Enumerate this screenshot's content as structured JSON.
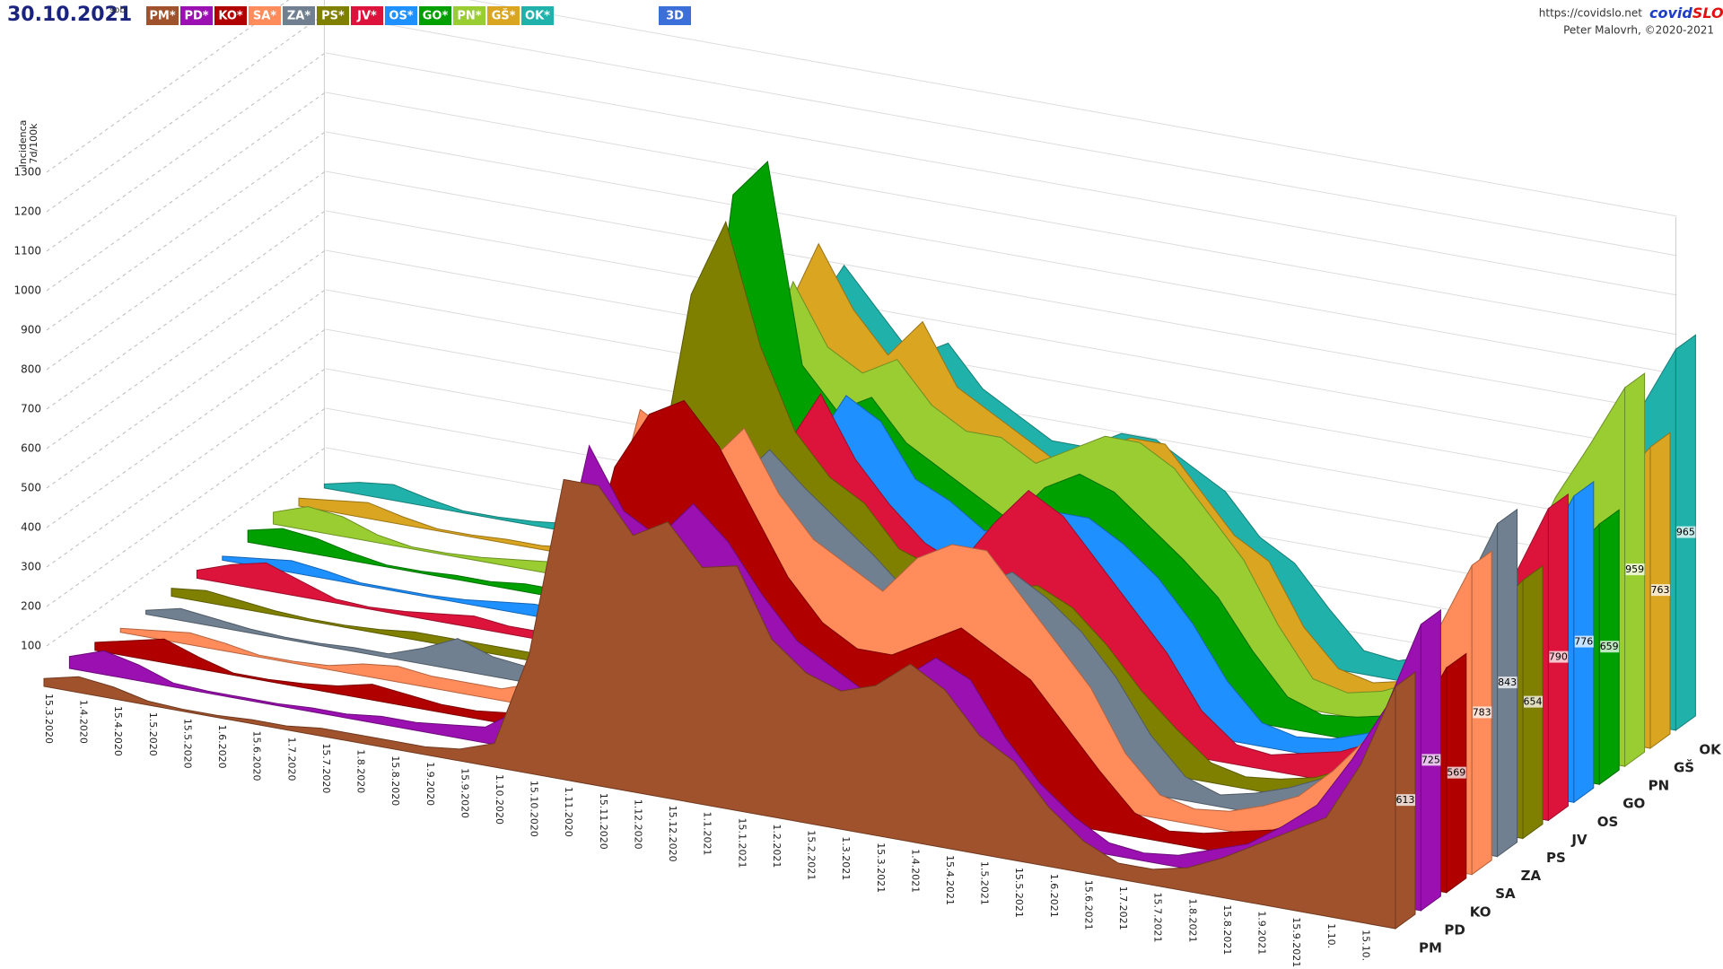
{
  "header": {
    "date": "30.10.2021",
    "weekday": "sob",
    "url": "https://covidslo.net",
    "brand_a": "covid",
    "brand_b": "SLO",
    "author": "Peter Malovrh, ©2020-2021",
    "mode_button": "3D"
  },
  "chart_data": {
    "type": "area",
    "y_label": [
      "Incidenca",
      "7d/100k"
    ],
    "legend_labels": [
      "PM*",
      "PD*",
      "KO*",
      "SA*",
      "ZA*",
      "PS*",
      "JV*",
      "OS*",
      "GO*",
      "PN*",
      "GŠ*",
      "OK*"
    ],
    "categories": [
      "15.3.2020",
      "1.4.2020",
      "15.4.2020",
      "1.5.2020",
      "15.5.2020",
      "1.6.2020",
      "15.6.2020",
      "1.7.2020",
      "15.7.2020",
      "1.8.2020",
      "15.8.2020",
      "1.9.2020",
      "15.9.2020",
      "1.10.2020",
      "15.10.2020",
      "1.11.2020",
      "15.11.2020",
      "1.12.2020",
      "15.12.2020",
      "1.1.2021",
      "15.1.2021",
      "1.2.2021",
      "15.2.2021",
      "1.3.2021",
      "15.3.2021",
      "1.4.2021",
      "15.4.2021",
      "1.5.2021",
      "15.5.2021",
      "1.6.2021",
      "15.6.2021",
      "1.7.2021",
      "15.7.2021",
      "1.8.2021",
      "15.8.2021",
      "1.9.2021",
      "15.9.2021",
      "1.10.",
      "15.10.",
      null
    ],
    "series": [
      {
        "name": "PM",
        "color": "#a0522d",
        "values": [
          20,
          40,
          30,
          10,
          5,
          5,
          10,
          10,
          20,
          20,
          20,
          20,
          30,
          60,
          300,
          760,
          760,
          650,
          700,
          600,
          620,
          450,
          380,
          350,
          380,
          450,
          400,
          300,
          250,
          150,
          80,
          40,
          40,
          60,
          100,
          150,
          200,
          250,
          400,
          613
        ]
      },
      {
        "name": "PD",
        "color": "#9b10b0",
        "values": [
          30,
          60,
          40,
          10,
          5,
          5,
          5,
          10,
          10,
          20,
          20,
          30,
          40,
          100,
          400,
          800,
          650,
          600,
          700,
          620,
          500,
          400,
          350,
          300,
          350,
          420,
          380,
          250,
          150,
          80,
          30,
          20,
          30,
          60,
          90,
          150,
          220,
          350,
          500,
          725
        ]
      },
      {
        "name": "KO",
        "color": "#b00000",
        "values": [
          20,
          40,
          60,
          30,
          5,
          5,
          10,
          20,
          40,
          30,
          20,
          20,
          30,
          80,
          350,
          700,
          850,
          900,
          800,
          650,
          500,
          400,
          350,
          350,
          400,
          450,
          400,
          350,
          250,
          150,
          60,
          30,
          40,
          60,
          80,
          120,
          200,
          300,
          400,
          569
        ]
      },
      {
        "name": "SA",
        "color": "#ff8c5a",
        "values": [
          10,
          20,
          30,
          20,
          5,
          5,
          10,
          30,
          40,
          30,
          30,
          30,
          60,
          150,
          450,
          800,
          750,
          700,
          800,
          650,
          550,
          500,
          450,
          550,
          600,
          600,
          500,
          400,
          300,
          150,
          60,
          40,
          50,
          80,
          120,
          200,
          300,
          450,
          600,
          783
        ]
      },
      {
        "name": "ZA",
        "color": "#708090",
        "values": [
          10,
          30,
          20,
          10,
          5,
          5,
          10,
          10,
          40,
          80,
          50,
          40,
          60,
          200,
          500,
          750,
          650,
          600,
          700,
          620,
          550,
          480,
          400,
          400,
          450,
          500,
          450,
          380,
          280,
          150,
          60,
          30,
          50,
          80,
          120,
          200,
          320,
          500,
          650,
          843
        ]
      },
      {
        "name": "PS",
        "color": "#808000",
        "values": [
          20,
          30,
          20,
          10,
          5,
          5,
          10,
          20,
          20,
          20,
          20,
          20,
          40,
          150,
          500,
          1000,
          1200,
          900,
          700,
          600,
          550,
          450,
          420,
          400,
          400,
          420,
          380,
          300,
          200,
          120,
          50,
          30,
          40,
          60,
          100,
          180,
          300,
          450,
          550,
          654
        ]
      },
      {
        "name": "JV",
        "color": "#dc143c",
        "values": [
          20,
          50,
          70,
          40,
          10,
          5,
          10,
          20,
          30,
          20,
          20,
          30,
          50,
          150,
          400,
          700,
          650,
          600,
          750,
          600,
          500,
          420,
          380,
          500,
          600,
          550,
          450,
          350,
          250,
          120,
          50,
          40,
          60,
          80,
          120,
          200,
          320,
          450,
          600,
          790
        ]
      },
      {
        "name": "OS",
        "color": "#1e90ff",
        "values": [
          10,
          20,
          30,
          20,
          5,
          5,
          5,
          10,
          20,
          30,
          30,
          30,
          60,
          200,
          500,
          800,
          600,
          550,
          700,
          650,
          520,
          480,
          420,
          450,
          500,
          500,
          450,
          380,
          280,
          150,
          60,
          40,
          50,
          80,
          120,
          180,
          300,
          450,
          600,
          776
        ]
      },
      {
        "name": "GO",
        "color": "#00a000",
        "values": [
          30,
          50,
          40,
          20,
          5,
          5,
          10,
          10,
          20,
          20,
          30,
          40,
          80,
          400,
          1100,
          1200,
          700,
          600,
          650,
          550,
          500,
          450,
          400,
          500,
          550,
          520,
          450,
          380,
          300,
          180,
          80,
          50,
          60,
          80,
          120,
          200,
          300,
          450,
          550,
          659
        ]
      },
      {
        "name": "PN",
        "color": "#9acd32",
        "values": [
          30,
          60,
          50,
          20,
          5,
          5,
          10,
          20,
          30,
          40,
          40,
          40,
          80,
          250,
          600,
          850,
          700,
          650,
          700,
          600,
          550,
          550,
          500,
          550,
          600,
          600,
          550,
          450,
          350,
          200,
          80,
          60,
          80,
          120,
          200,
          300,
          450,
          650,
          800,
          959
        ]
      },
      {
        "name": "GŠ",
        "color": "#daa520",
        "values": [
          20,
          30,
          40,
          20,
          5,
          5,
          10,
          10,
          20,
          30,
          40,
          40,
          80,
          300,
          700,
          900,
          750,
          650,
          750,
          600,
          550,
          500,
          450,
          500,
          550,
          550,
          450,
          350,
          300,
          150,
          60,
          40,
          60,
          100,
          150,
          220,
          350,
          500,
          650,
          763
        ]
      },
      {
        "name": "OK",
        "color": "#20b2aa",
        "values": [
          10,
          30,
          40,
          20,
          5,
          5,
          10,
          20,
          40,
          60,
          50,
          50,
          100,
          300,
          650,
          800,
          700,
          600,
          650,
          550,
          500,
          450,
          450,
          500,
          500,
          450,
          400,
          300,
          250,
          150,
          60,
          50,
          80,
          120,
          200,
          300,
          450,
          650,
          800,
          965
        ]
      }
    ],
    "ylim": [
      0,
      1300
    ],
    "yticks": [
      100,
      200,
      300,
      400,
      500,
      600,
      700,
      800,
      900,
      1000,
      1100,
      1200,
      1300
    ],
    "grid": true
  }
}
